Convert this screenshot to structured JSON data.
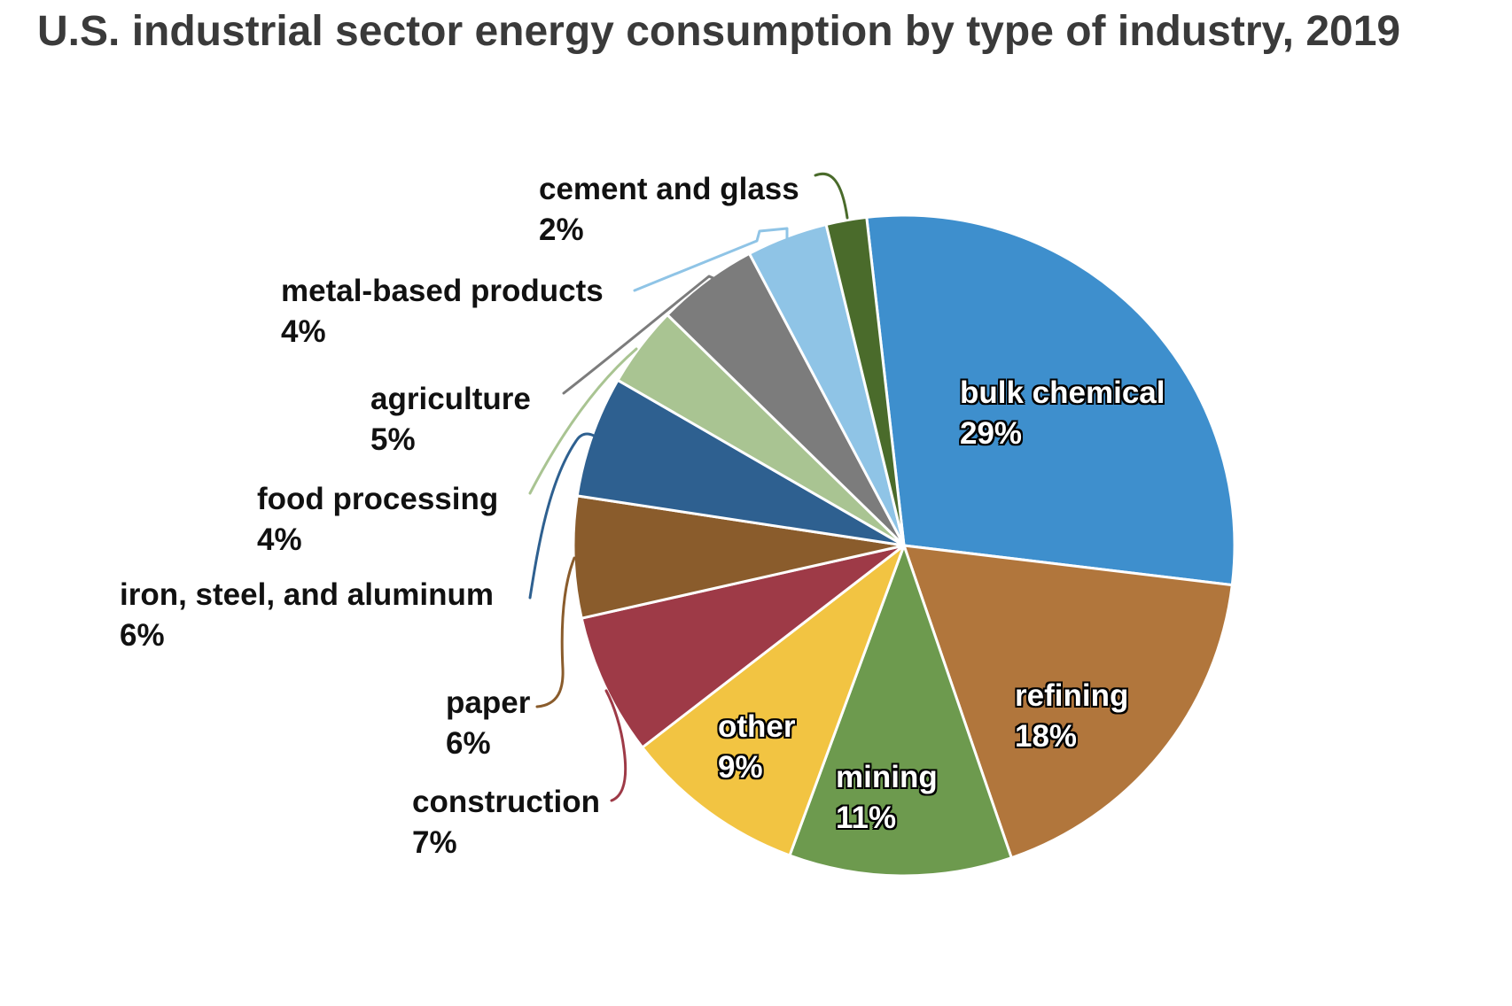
{
  "title": "U.S. industrial sector energy consumption by type of industry, 2019",
  "chart_data": {
    "type": "pie",
    "title": "U.S. industrial sector energy consumption by type of industry, 2019",
    "rotation": "clockwise",
    "start_angle_deg": -6.5,
    "legend_position": "none",
    "label_style": "inside-for-large-slices, callout-labels-with-leader-lines-for-small-slices",
    "background_color": "#ffffff",
    "title_color": "#3a3a3a",
    "slices": [
      {
        "label": "bulk chemical",
        "value": 29,
        "pct_label": "29%",
        "color": "#3e8fcd",
        "label_placement": "inside"
      },
      {
        "label": "refining",
        "value": 18,
        "pct_label": "18%",
        "color": "#b1763c",
        "label_placement": "inside"
      },
      {
        "label": "mining",
        "value": 11,
        "pct_label": "11%",
        "color": "#6d9a4e",
        "label_placement": "inside"
      },
      {
        "label": "other",
        "value": 9,
        "pct_label": "9%",
        "color": "#f2c442",
        "label_placement": "inside"
      },
      {
        "label": "construction",
        "value": 7,
        "pct_label": "7%",
        "color": "#9e3a47",
        "label_placement": "callout"
      },
      {
        "label": "paper",
        "value": 6,
        "pct_label": "6%",
        "color": "#8a5c2c",
        "label_placement": "callout"
      },
      {
        "label": "iron, steel, and aluminum",
        "value": 6,
        "pct_label": "6%",
        "color": "#2e6090",
        "label_placement": "callout"
      },
      {
        "label": "food processing",
        "value": 4,
        "pct_label": "4%",
        "color": "#a9c492",
        "label_placement": "callout"
      },
      {
        "label": "agriculture",
        "value": 5,
        "pct_label": "5%",
        "color": "#7c7c7c",
        "label_placement": "callout"
      },
      {
        "label": "metal-based products",
        "value": 4,
        "pct_label": "4%",
        "color": "#8fc4e6",
        "label_placement": "callout"
      },
      {
        "label": "cement and glass",
        "value": 2,
        "pct_label": "2%",
        "color": "#4a6b2b",
        "label_placement": "callout"
      }
    ]
  }
}
